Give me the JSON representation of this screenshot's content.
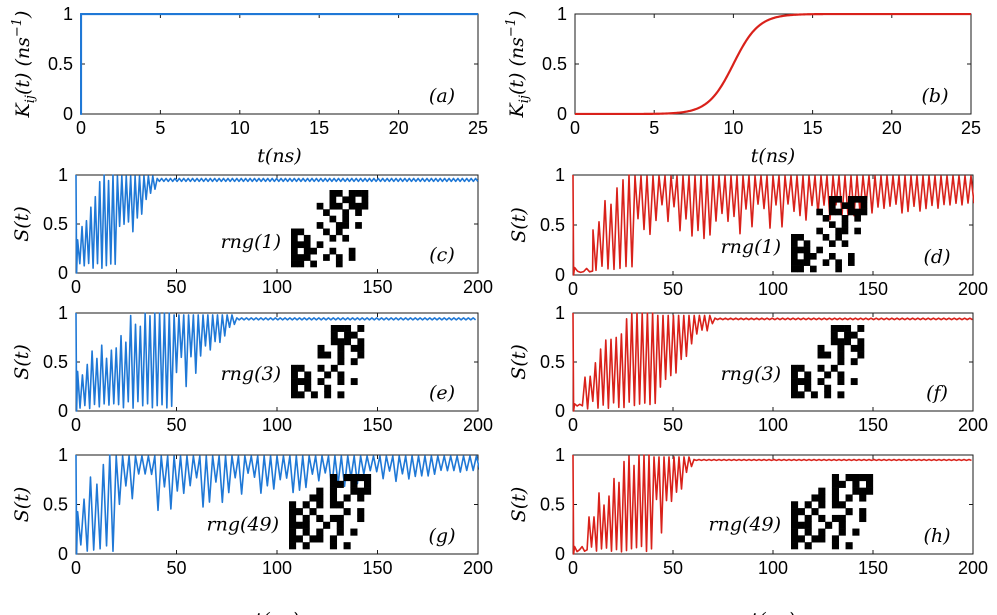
{
  "colors": {
    "blue": "#1f78d6",
    "red": "#d9211a",
    "axis": "#1a1a1a"
  },
  "labels": {
    "kij_a": "K",
    "kij_sub": "ij",
    "kij_rest": "(t) (ns",
    "kij_exp": "−1",
    "kij_close": ")",
    "t_ns": "t(ns)",
    "s_t": "S(t)"
  },
  "chart_data": [
    {
      "id": "a",
      "type": "line",
      "tag": "(a)",
      "color": "blue",
      "xlabel": "t(ns)",
      "ylabel": "K_ij(t) (ns^-1)",
      "xlim": [
        0,
        25
      ],
      "ylim": [
        0,
        1
      ],
      "xticks": [
        0,
        5,
        10,
        15,
        20,
        25
      ],
      "yticks": [
        0,
        0.5,
        1
      ],
      "xtick_labels": [
        "0",
        "5",
        "10",
        "15",
        "20",
        "25"
      ],
      "ytick_labels": [
        "0",
        "0.5",
        "1"
      ],
      "curve": "step",
      "step_at": 0,
      "x": [
        -0.2,
        -0.001,
        0,
        25
      ],
      "y": [
        0,
        0,
        1,
        1
      ]
    },
    {
      "id": "b",
      "type": "line",
      "tag": "(b)",
      "color": "red",
      "xlabel": "t(ns)",
      "ylabel": "K_ij(t) (ns^-1)",
      "xlim": [
        0,
        25
      ],
      "ylim": [
        0,
        1
      ],
      "xticks": [
        0,
        5,
        10,
        15,
        20,
        25
      ],
      "yticks": [
        0,
        0.5,
        1
      ],
      "xtick_labels": [
        "0",
        "5",
        "10",
        "15",
        "20",
        "25"
      ],
      "ytick_labels": [
        "0",
        "0.5",
        "1"
      ],
      "curve": "sigmoid",
      "midpoint": 10,
      "steepness": 1.25,
      "x": [
        0,
        5,
        7.5,
        10,
        12.5,
        15,
        25
      ],
      "y": [
        0,
        0.02,
        0.21,
        0.5,
        0.8,
        0.97,
        1
      ]
    },
    {
      "id": "c",
      "type": "line",
      "tag": "(c)",
      "rng": "rng(1)",
      "color": "blue",
      "ylabel": "S(t)",
      "xlim": [
        0,
        200
      ],
      "ylim": [
        0,
        1
      ],
      "xticks": [
        0,
        50,
        100,
        150,
        200
      ],
      "yticks": [
        0,
        0.5,
        1
      ],
      "xtick_labels": [
        "0",
        "50",
        "100",
        "150",
        "200"
      ],
      "ytick_labels": [
        "0",
        "0.5",
        "1"
      ],
      "curve": "oscillation",
      "settle_start": 0,
      "settle_end": 20,
      "oscillation_end": 40,
      "steady_level": 0.95,
      "ripple": 0.03,
      "period": 2.2,
      "seed": 3,
      "matrix": [
        "......##.###",
        "......#.##.#",
        "....#.##.###",
        ".....#..#.#.",
        "......#.#...",
        "....#..##.#.",
        "##...#.#....",
        "#.#...#.#...",
        "###.#.......",
        "#.##..#..#..",
        "###..#.#.#..",
        "##.#...#...."
      ]
    },
    {
      "id": "d",
      "type": "line",
      "tag": "(d)",
      "rng": "rng(1)",
      "color": "red",
      "ylabel": "S(t)",
      "xlim": [
        0,
        200
      ],
      "ylim": [
        0,
        1
      ],
      "xticks": [
        0,
        50,
        100,
        150,
        200
      ],
      "yticks": [
        0,
        0.5,
        1
      ],
      "xtick_labels": [
        "0",
        "50",
        "100",
        "150",
        "200"
      ],
      "ytick_labels": [
        "0",
        "0.5",
        "1"
      ],
      "curve": "oscillation",
      "settle_start": 10,
      "settle_end": 30,
      "oscillation_end": 200,
      "steady_level": 0.86,
      "ripple": 0.14,
      "period": 3,
      "seed": 11,
      "matrix": [
        "......##.###",
        "......#.##.#",
        "....#.##.###",
        ".....#..#.#.",
        "......#.#...",
        "....#..##.#.",
        "##...#.#....",
        "#.#...#.#...",
        "###.#.......",
        "#.##..#..#..",
        "###..#.#.#..",
        "##.#...#...."
      ]
    },
    {
      "id": "e",
      "type": "line",
      "tag": "(e)",
      "rng": "rng(3)",
      "color": "blue",
      "ylabel": "S(t)",
      "xlim": [
        0,
        200
      ],
      "ylim": [
        0,
        1
      ],
      "xticks": [
        0,
        50,
        100,
        150,
        200
      ],
      "yticks": [
        0,
        0.5,
        1
      ],
      "xtick_labels": [
        "0",
        "50",
        "100",
        "150",
        "200"
      ],
      "ytick_labels": [
        "0",
        "0.5",
        "1"
      ],
      "curve": "oscillation",
      "settle_start": 0,
      "settle_end": 48,
      "oscillation_end": 80,
      "steady_level": 0.94,
      "ripple": 0.02,
      "period": 2.4,
      "seed": 7,
      "matrix": [
        "......###.#",
        "......#.##.",
        "......###.#",
        "....#..#.##",
        "....##.#..#",
        ".......#.#.",
        "##..#.#....",
        "#.#..#.#...",
        "###.#..#.#.",
        "#.#..#.....",
        "##.#.#.#..."
      ]
    },
    {
      "id": "f",
      "type": "line",
      "tag": "(f)",
      "rng": "rng(3)",
      "color": "red",
      "ylabel": "S(t)",
      "xlim": [
        0,
        200
      ],
      "ylim": [
        0,
        1
      ],
      "xticks": [
        0,
        50,
        100,
        150,
        200
      ],
      "yticks": [
        0,
        0.5,
        1
      ],
      "xtick_labels": [
        "0",
        "50",
        "100",
        "150",
        "200"
      ],
      "ytick_labels": [
        "0",
        "0.5",
        "1"
      ],
      "curve": "oscillation",
      "settle_start": 6,
      "settle_end": 40,
      "oscillation_end": 70,
      "steady_level": 0.94,
      "ripple": 0.015,
      "period": 2.6,
      "seed": 5,
      "matrix": [
        "......###.#",
        "......#.##.",
        "......###.#",
        "....#..#.##",
        "....##.#..#",
        ".......#.#.",
        "##..#.#....",
        "#.#..#.#...",
        "###.#..#.#.",
        "#.#..#.....",
        "##.#.#.#..."
      ]
    },
    {
      "id": "g",
      "type": "line",
      "tag": "(g)",
      "rng": "rng(49)",
      "color": "blue",
      "xlabel": "t(ns)",
      "ylabel": "S(t)",
      "xlim": [
        0,
        200
      ],
      "ylim": [
        0,
        1
      ],
      "xticks": [
        0,
        50,
        100,
        150,
        200
      ],
      "yticks": [
        0,
        0.5,
        1
      ],
      "xtick_labels": [
        "0",
        "50",
        "100",
        "150",
        "200"
      ],
      "ytick_labels": [
        "0",
        "0.5",
        "1"
      ],
      "curve": "oscillation",
      "settle_start": 0,
      "settle_end": 20,
      "oscillation_end": 200,
      "steady_level": 0.93,
      "ripple": 0.08,
      "period": 3.2,
      "seed": 13,
      "matrix": [
        "......#.####",
        "......##.#.#",
        "....#.#..###",
        "...##.#.#.#.",
        "#.#.#.##....",
        "##.#....#.#.",
        "#.#.#.##..#.",
        "###..#.#....",
        "#.#.#..#.#..",
        "##.##.#.....",
        "#.#...#.#..."
      ]
    },
    {
      "id": "h",
      "type": "line",
      "tag": "(h)",
      "rng": "rng(49)",
      "color": "red",
      "xlabel": "t(ns)",
      "ylabel": "S(t)",
      "xlim": [
        0,
        200
      ],
      "ylim": [
        0,
        1
      ],
      "xticks": [
        0,
        50,
        100,
        150,
        200
      ],
      "yticks": [
        0,
        0.5,
        1
      ],
      "xtick_labels": [
        "0",
        "50",
        "100",
        "150",
        "200"
      ],
      "ytick_labels": [
        "0",
        "0.5",
        "1"
      ],
      "curve": "oscillation",
      "settle_start": 8,
      "settle_end": 40,
      "oscillation_end": 60,
      "steady_level": 0.95,
      "ripple": 0.01,
      "period": 2.5,
      "seed": 17,
      "matrix": [
        "......#.####",
        "......##.#.#",
        "....#.#..###",
        "...##.#.#.#.",
        "#.#.#.##....",
        "##.#....#.#.",
        "#.#.#.##..#.",
        "###..#.#....",
        "#.#.#..#.#..",
        "##.##.#.....",
        "#.#...#.#..."
      ]
    }
  ]
}
